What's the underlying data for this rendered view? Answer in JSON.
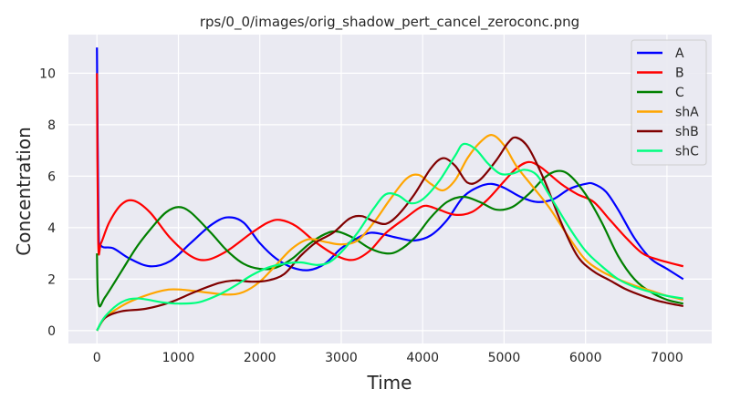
{
  "chart_data": {
    "type": "line",
    "title": "rps/0_0/images/orig_shadow_pert_cancel_zeroconc.png",
    "xlabel": "Time",
    "ylabel": "Concentration",
    "xlim": [
      -350,
      7550
    ],
    "ylim": [
      -0.5,
      11.5
    ],
    "xticks": [
      0,
      1000,
      2000,
      3000,
      4000,
      5000,
      6000,
      7000
    ],
    "yticks": [
      0,
      2,
      4,
      6,
      8,
      10
    ],
    "grid": true,
    "legend_position": "top-right",
    "series": [
      {
        "name": "A",
        "color": "#0000ff",
        "points": [
          [
            0,
            11
          ],
          [
            20,
            4
          ],
          [
            50,
            3.3
          ],
          [
            200,
            3.2
          ],
          [
            400,
            2.8
          ],
          [
            650,
            2.5
          ],
          [
            900,
            2.7
          ],
          [
            1150,
            3.4
          ],
          [
            1400,
            4.1
          ],
          [
            1600,
            4.4
          ],
          [
            1800,
            4.2
          ],
          [
            2000,
            3.4
          ],
          [
            2200,
            2.8
          ],
          [
            2400,
            2.45
          ],
          [
            2600,
            2.35
          ],
          [
            2800,
            2.6
          ],
          [
            3000,
            3.2
          ],
          [
            3200,
            3.6
          ],
          [
            3350,
            3.8
          ],
          [
            3500,
            3.75
          ],
          [
            3700,
            3.6
          ],
          [
            3900,
            3.5
          ],
          [
            4100,
            3.7
          ],
          [
            4300,
            4.3
          ],
          [
            4500,
            5.2
          ],
          [
            4700,
            5.6
          ],
          [
            4850,
            5.7
          ],
          [
            5000,
            5.55
          ],
          [
            5200,
            5.2
          ],
          [
            5400,
            5.0
          ],
          [
            5600,
            5.1
          ],
          [
            5800,
            5.5
          ],
          [
            6000,
            5.7
          ],
          [
            6100,
            5.7
          ],
          [
            6250,
            5.4
          ],
          [
            6400,
            4.7
          ],
          [
            6600,
            3.6
          ],
          [
            6800,
            2.8
          ],
          [
            7000,
            2.4
          ],
          [
            7200,
            2.0
          ]
        ]
      },
      {
        "name": "B",
        "color": "#ff0000",
        "points": [
          [
            0,
            10
          ],
          [
            15,
            3.5
          ],
          [
            50,
            3.4
          ],
          [
            150,
            4.2
          ],
          [
            300,
            4.9
          ],
          [
            450,
            5.05
          ],
          [
            650,
            4.6
          ],
          [
            900,
            3.6
          ],
          [
            1150,
            2.9
          ],
          [
            1350,
            2.75
          ],
          [
            1600,
            3.1
          ],
          [
            1900,
            3.8
          ],
          [
            2100,
            4.2
          ],
          [
            2250,
            4.3
          ],
          [
            2450,
            4.05
          ],
          [
            2700,
            3.4
          ],
          [
            2950,
            2.9
          ],
          [
            3150,
            2.75
          ],
          [
            3350,
            3.1
          ],
          [
            3550,
            3.8
          ],
          [
            3800,
            4.4
          ],
          [
            3950,
            4.75
          ],
          [
            4050,
            4.85
          ],
          [
            4200,
            4.7
          ],
          [
            4400,
            4.5
          ],
          [
            4600,
            4.6
          ],
          [
            4800,
            5.1
          ],
          [
            5000,
            5.8
          ],
          [
            5150,
            6.3
          ],
          [
            5300,
            6.55
          ],
          [
            5450,
            6.35
          ],
          [
            5700,
            5.7
          ],
          [
            5900,
            5.3
          ],
          [
            6100,
            5.0
          ],
          [
            6300,
            4.3
          ],
          [
            6500,
            3.6
          ],
          [
            6700,
            3.0
          ],
          [
            6900,
            2.75
          ],
          [
            7200,
            2.5
          ]
        ]
      },
      {
        "name": "C",
        "color": "#008000",
        "points": [
          [
            0,
            3
          ],
          [
            20,
            1.05
          ],
          [
            100,
            1.3
          ],
          [
            300,
            2.3
          ],
          [
            500,
            3.3
          ],
          [
            700,
            4.1
          ],
          [
            850,
            4.6
          ],
          [
            1000,
            4.8
          ],
          [
            1150,
            4.6
          ],
          [
            1400,
            3.8
          ],
          [
            1600,
            3.1
          ],
          [
            1800,
            2.6
          ],
          [
            2000,
            2.4
          ],
          [
            2200,
            2.45
          ],
          [
            2400,
            2.8
          ],
          [
            2600,
            3.35
          ],
          [
            2800,
            3.75
          ],
          [
            2950,
            3.85
          ],
          [
            3150,
            3.6
          ],
          [
            3350,
            3.2
          ],
          [
            3550,
            3.0
          ],
          [
            3700,
            3.1
          ],
          [
            3900,
            3.6
          ],
          [
            4100,
            4.4
          ],
          [
            4300,
            5.0
          ],
          [
            4500,
            5.2
          ],
          [
            4700,
            5.0
          ],
          [
            4900,
            4.7
          ],
          [
            5100,
            4.8
          ],
          [
            5300,
            5.3
          ],
          [
            5500,
            5.95
          ],
          [
            5650,
            6.2
          ],
          [
            5800,
            6.05
          ],
          [
            6000,
            5.3
          ],
          [
            6200,
            4.2
          ],
          [
            6400,
            2.9
          ],
          [
            6600,
            2.0
          ],
          [
            6800,
            1.5
          ],
          [
            7000,
            1.2
          ],
          [
            7200,
            1.05
          ]
        ]
      },
      {
        "name": "shA",
        "color": "#ffa500",
        "points": [
          [
            0,
            0
          ],
          [
            100,
            0.5
          ],
          [
            300,
            0.95
          ],
          [
            500,
            1.25
          ],
          [
            800,
            1.55
          ],
          [
            1000,
            1.6
          ],
          [
            1300,
            1.5
          ],
          [
            1600,
            1.4
          ],
          [
            1800,
            1.5
          ],
          [
            2000,
            1.9
          ],
          [
            2200,
            2.55
          ],
          [
            2400,
            3.2
          ],
          [
            2600,
            3.55
          ],
          [
            2800,
            3.45
          ],
          [
            3000,
            3.35
          ],
          [
            3200,
            3.5
          ],
          [
            3400,
            4.2
          ],
          [
            3600,
            5.1
          ],
          [
            3800,
            5.9
          ],
          [
            3950,
            6.05
          ],
          [
            4100,
            5.7
          ],
          [
            4250,
            5.45
          ],
          [
            4400,
            5.85
          ],
          [
            4550,
            6.7
          ],
          [
            4700,
            7.3
          ],
          [
            4850,
            7.6
          ],
          [
            5000,
            7.2
          ],
          [
            5150,
            6.4
          ],
          [
            5350,
            5.6
          ],
          [
            5550,
            4.8
          ],
          [
            5800,
            3.6
          ],
          [
            6000,
            2.75
          ],
          [
            6200,
            2.3
          ],
          [
            6400,
            2.0
          ],
          [
            6600,
            1.75
          ],
          [
            6800,
            1.55
          ],
          [
            7000,
            1.35
          ],
          [
            7200,
            1.2
          ]
        ]
      },
      {
        "name": "shB",
        "color": "#800000",
        "points": [
          [
            0,
            0
          ],
          [
            100,
            0.5
          ],
          [
            300,
            0.75
          ],
          [
            600,
            0.85
          ],
          [
            900,
            1.1
          ],
          [
            1200,
            1.5
          ],
          [
            1500,
            1.85
          ],
          [
            1700,
            1.95
          ],
          [
            1900,
            1.9
          ],
          [
            2100,
            1.95
          ],
          [
            2300,
            2.2
          ],
          [
            2500,
            2.9
          ],
          [
            2700,
            3.45
          ],
          [
            2900,
            3.8
          ],
          [
            3100,
            4.35
          ],
          [
            3250,
            4.45
          ],
          [
            3400,
            4.25
          ],
          [
            3550,
            4.15
          ],
          [
            3700,
            4.5
          ],
          [
            3900,
            5.3
          ],
          [
            4100,
            6.3
          ],
          [
            4250,
            6.7
          ],
          [
            4400,
            6.4
          ],
          [
            4550,
            5.75
          ],
          [
            4700,
            5.85
          ],
          [
            4900,
            6.6
          ],
          [
            5050,
            7.3
          ],
          [
            5150,
            7.5
          ],
          [
            5300,
            7.1
          ],
          [
            5500,
            5.8
          ],
          [
            5700,
            4.2
          ],
          [
            5900,
            2.9
          ],
          [
            6100,
            2.3
          ],
          [
            6300,
            1.95
          ],
          [
            6500,
            1.6
          ],
          [
            6700,
            1.35
          ],
          [
            6900,
            1.15
          ],
          [
            7200,
            0.95
          ]
        ]
      },
      {
        "name": "shC",
        "color": "#00ff7f",
        "points": [
          [
            0,
            0
          ],
          [
            100,
            0.55
          ],
          [
            300,
            1.1
          ],
          [
            500,
            1.25
          ],
          [
            800,
            1.1
          ],
          [
            1000,
            1.05
          ],
          [
            1250,
            1.1
          ],
          [
            1500,
            1.4
          ],
          [
            1700,
            1.75
          ],
          [
            1900,
            2.15
          ],
          [
            2100,
            2.45
          ],
          [
            2300,
            2.6
          ],
          [
            2500,
            2.65
          ],
          [
            2700,
            2.55
          ],
          [
            2850,
            2.65
          ],
          [
            3000,
            3.05
          ],
          [
            3200,
            3.8
          ],
          [
            3400,
            4.75
          ],
          [
            3550,
            5.3
          ],
          [
            3700,
            5.25
          ],
          [
            3850,
            4.95
          ],
          [
            4000,
            5.1
          ],
          [
            4200,
            5.8
          ],
          [
            4400,
            6.8
          ],
          [
            4500,
            7.25
          ],
          [
            4650,
            7.05
          ],
          [
            4800,
            6.5
          ],
          [
            4950,
            6.1
          ],
          [
            5100,
            6.1
          ],
          [
            5250,
            6.25
          ],
          [
            5400,
            6.05
          ],
          [
            5550,
            5.3
          ],
          [
            5800,
            4.0
          ],
          [
            6000,
            3.1
          ],
          [
            6200,
            2.5
          ],
          [
            6400,
            2.0
          ],
          [
            6600,
            1.7
          ],
          [
            6800,
            1.5
          ],
          [
            7000,
            1.35
          ],
          [
            7200,
            1.25
          ]
        ]
      }
    ]
  }
}
